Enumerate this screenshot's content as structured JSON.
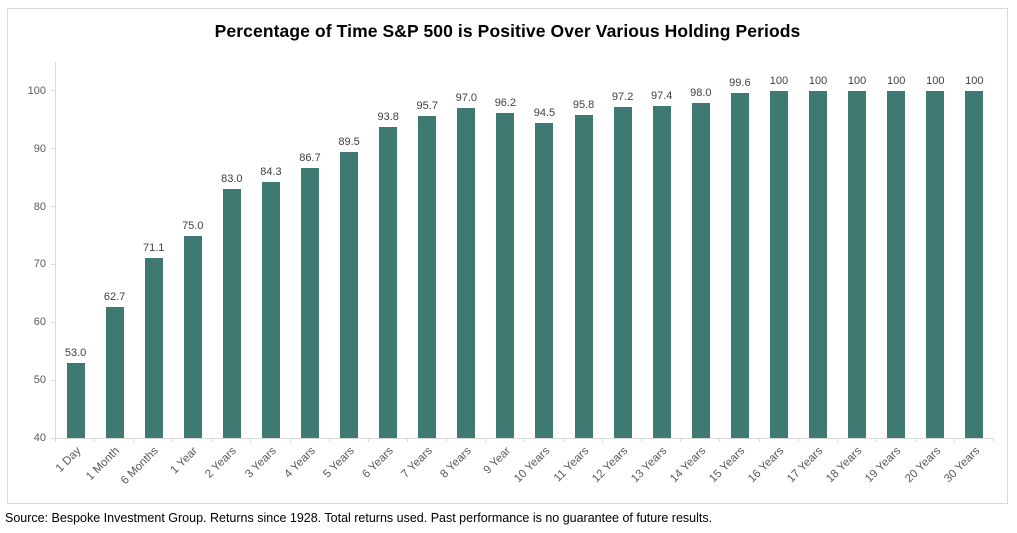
{
  "title": "Percentage of Time S&P 500 is Positive Over Various Holding Periods",
  "source_note": "Source: Bespoke Investment Group. Returns since 1928. Total returns used. Past performance is no guarantee of future results.",
  "colors": {
    "bar": "#3E7972",
    "axis_line": "#D9D9D9",
    "tick_label": "#595959",
    "data_label": "#404040",
    "title": "#000000",
    "background": "#FFFFFF"
  },
  "chart_data": {
    "type": "bar",
    "title": "Percentage of Time S&P 500 is Positive Over Various Holding Periods",
    "categories": [
      "1 Day",
      "1 Month",
      "6 Months",
      "1 Year",
      "2 Years",
      "3 Years",
      "4 Years",
      "5 Years",
      "6 Years",
      "7 Years",
      "8 Years",
      "9 Year",
      "10 Years",
      "11 Years",
      "12 Years",
      "13 Years",
      "14 Years",
      "15 Years",
      "16 Years",
      "17 Years",
      "18 Years",
      "19 Years",
      "20 Years",
      "30 Years"
    ],
    "values": [
      53.0,
      62.7,
      71.1,
      75.0,
      83.0,
      84.3,
      86.7,
      89.5,
      93.8,
      95.7,
      97.0,
      96.2,
      94.5,
      95.8,
      97.2,
      97.4,
      98.0,
      99.6,
      100,
      100,
      100,
      100,
      100,
      100
    ],
    "value_labels": [
      "53.0",
      "62.7",
      "71.1",
      "75.0",
      "83.0",
      "84.3",
      "86.7",
      "89.5",
      "93.8",
      "95.7",
      "97.0",
      "96.2",
      "94.5",
      "95.8",
      "97.2",
      "97.4",
      "98.0",
      "99.6",
      "100",
      "100",
      "100",
      "100",
      "100",
      "100"
    ],
    "xlabel": "",
    "ylabel": "",
    "ylim": [
      40,
      105
    ],
    "yticks": [
      40,
      50,
      60,
      70,
      80,
      90,
      100
    ],
    "grid": false,
    "legend": false,
    "bar_color": "#3E7972",
    "data_labels_shown": true,
    "x_label_rotation_deg": 45
  }
}
